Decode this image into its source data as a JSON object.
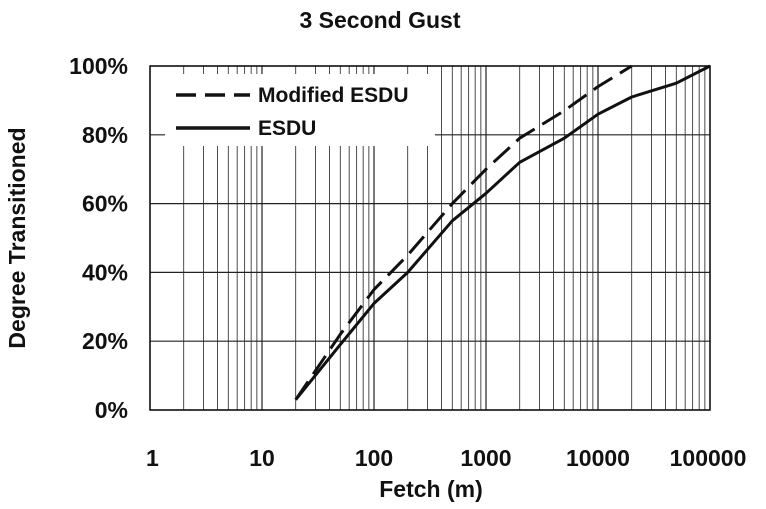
{
  "chart_data": {
    "type": "line",
    "title": "3 Second Gust",
    "xlabel": "Fetch (m)",
    "ylabel": "Degree Transitioned",
    "x_scale": "log",
    "xlim": [
      1,
      100000
    ],
    "ylim": [
      0,
      100
    ],
    "x_ticks": [
      "1",
      "10",
      "100",
      "1000",
      "10000",
      "100000"
    ],
    "y_ticks": [
      "0%",
      "20%",
      "40%",
      "60%",
      "80%",
      "100%"
    ],
    "grid": true,
    "legend": "top-left",
    "series": [
      {
        "name": "Modified ESDU",
        "style": "dashed",
        "color": "#111111",
        "x": [
          20,
          50,
          100,
          200,
          500,
          1000,
          2000,
          5000,
          10000,
          20000
        ],
        "y": [
          3,
          22,
          35,
          45,
          60,
          70,
          79,
          87,
          94,
          100
        ]
      },
      {
        "name": "ESDU",
        "style": "solid",
        "color": "#111111",
        "x": [
          20,
          50,
          100,
          200,
          500,
          1000,
          2000,
          5000,
          10000,
          20000,
          50000,
          100000
        ],
        "y": [
          3,
          19,
          31,
          40,
          55,
          63,
          72,
          79,
          86,
          91,
          95,
          100
        ]
      }
    ]
  }
}
